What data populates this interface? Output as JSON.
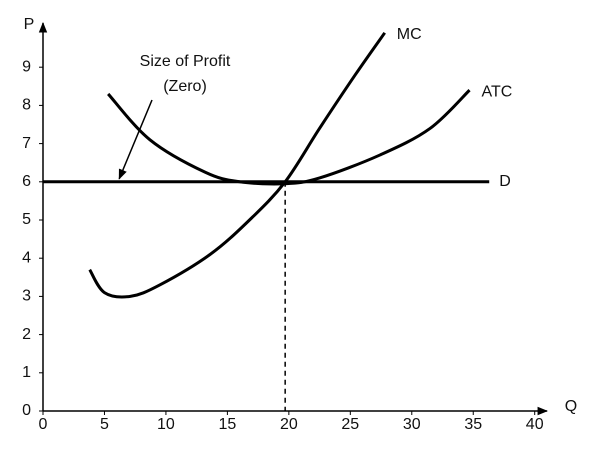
{
  "chart_data": {
    "type": "line",
    "x_label": "Q",
    "y_label": "P",
    "annotation": [
      "Size of Profit",
      "(Zero)"
    ],
    "annotation_target": [
      6.2,
      6
    ],
    "xlim": [
      0,
      41
    ],
    "ylim": [
      0,
      10
    ],
    "xticks": [
      0,
      5,
      10,
      15,
      20,
      25,
      30,
      35,
      40
    ],
    "yticks": [
      0,
      1,
      2,
      3,
      4,
      5,
      6,
      7,
      8,
      9
    ],
    "grid": false,
    "reference_line": {
      "x": 19.7,
      "y": 6,
      "style": "dashed"
    },
    "series": [
      {
        "name": "MC",
        "color": "#000000",
        "x": [
          3.8,
          5.0,
          7.1,
          9.5,
          13.6,
          16.8,
          19.7,
          22.5,
          25.4,
          27.8
        ],
        "values": [
          3.7,
          3.1,
          3.0,
          3.3,
          4.1,
          5.0,
          6.0,
          7.4,
          8.8,
          9.9
        ]
      },
      {
        "name": "ATC",
        "color": "#000000",
        "x": [
          5.3,
          8.7,
          13.2,
          16.0,
          19.7,
          22.5,
          27.4,
          31.5,
          34.7
        ],
        "values": [
          8.3,
          7.1,
          6.25,
          6.0,
          5.95,
          6.1,
          6.7,
          7.4,
          8.4
        ]
      },
      {
        "name": "D",
        "color": "#000000",
        "x": [
          0,
          36.3
        ],
        "values": [
          6,
          6
        ]
      }
    ]
  }
}
